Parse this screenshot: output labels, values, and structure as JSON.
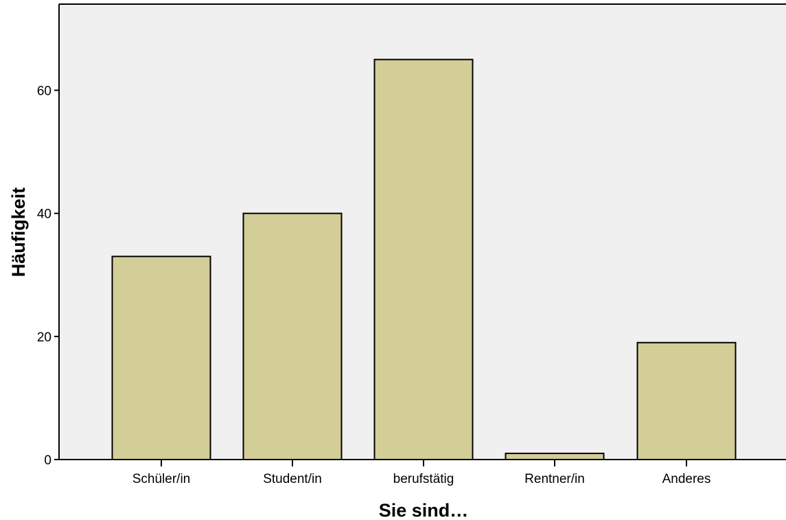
{
  "chart_data": {
    "type": "bar",
    "categories": [
      "Schüler/in",
      "Student/in",
      "berufstätig",
      "Rentner/in",
      "Anderes"
    ],
    "values": [
      33,
      40,
      65,
      1,
      19
    ],
    "xlabel": "Sie sind…",
    "ylabel": "Häufigkeit",
    "ylim": [
      0,
      74
    ],
    "yticks": [
      0,
      20,
      40,
      60
    ],
    "ytick_labels": [
      "0",
      "20",
      "40",
      "60"
    ],
    "grid": false,
    "legend": "none",
    "colors": {
      "bar_fill": "#d3cd98",
      "bar_stroke": "#000000",
      "plot_background": "#f0f0f0",
      "page_background": "#ffffff"
    }
  }
}
